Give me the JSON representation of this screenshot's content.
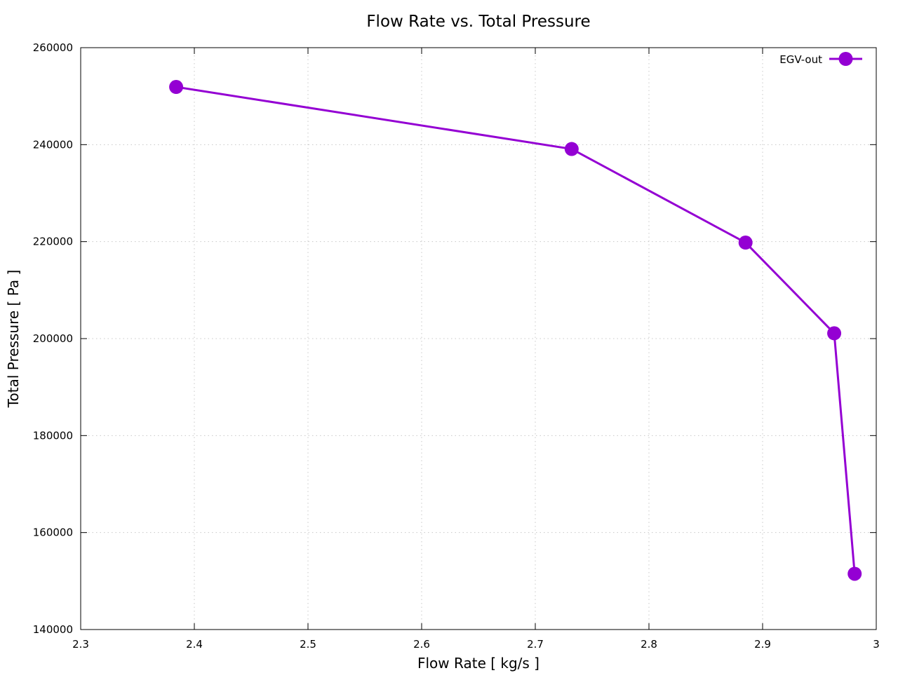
{
  "chart_data": {
    "type": "line",
    "title": "Flow Rate vs. Total Pressure",
    "xlabel": "Flow Rate [ kg/s ]",
    "ylabel": "Total Pressure [ Pa ]",
    "xlim": [
      2.3,
      3.0
    ],
    "ylim": [
      140000,
      260000
    ],
    "xticks": [
      2.3,
      2.4,
      2.5,
      2.6,
      2.7,
      2.8,
      2.9,
      3.0
    ],
    "xtick_labels": [
      "2.3",
      "2.4",
      "2.5",
      "2.6",
      "2.7",
      "2.8",
      "2.9",
      "3"
    ],
    "yticks": [
      140000,
      160000,
      180000,
      200000,
      220000,
      240000,
      260000
    ],
    "ytick_labels": [
      "140000",
      "160000",
      "180000",
      "200000",
      "220000",
      "240000",
      "260000"
    ],
    "grid": true,
    "legend_position": "top-right",
    "series": [
      {
        "name": "EGV-out",
        "color": "#9400d3",
        "marker": "filled-circle",
        "x": [
          2.384,
          2.732,
          2.885,
          2.963,
          2.981
        ],
        "y": [
          251900,
          239100,
          219800,
          201100,
          151500
        ]
      }
    ]
  }
}
